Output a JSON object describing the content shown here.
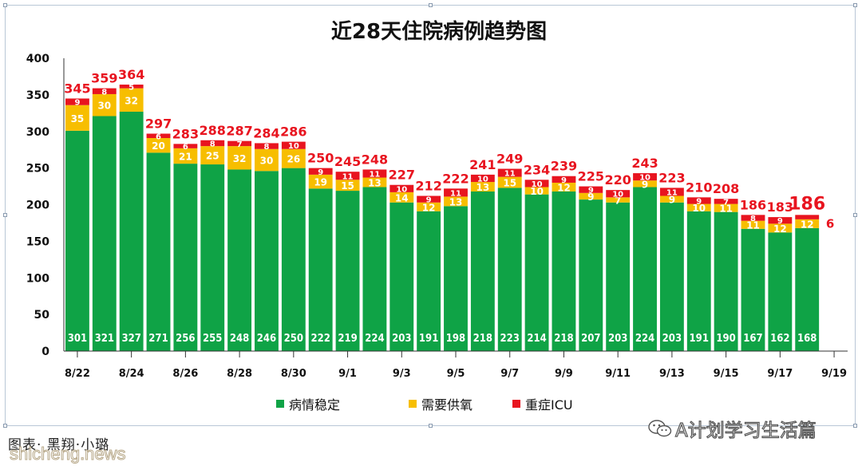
{
  "chart_data": {
    "type": "bar",
    "stacked": true,
    "title": "近28天住院病例趋势图",
    "categories": [
      "8/22",
      "8/23",
      "8/24",
      "8/25",
      "8/26",
      "8/27",
      "8/28",
      "8/29",
      "8/30",
      "8/31",
      "9/1",
      "9/2",
      "9/3",
      "9/4",
      "9/5",
      "9/6",
      "9/7",
      "9/8",
      "9/9",
      "9/10",
      "9/11",
      "9/12",
      "9/13",
      "9/14",
      "9/15",
      "9/16",
      "9/17",
      "9/18",
      "9/19"
    ],
    "x_tick_labels": [
      "8/22",
      "8/24",
      "8/26",
      "8/28",
      "8/30",
      "9/1",
      "9/3",
      "9/5",
      "9/7",
      "9/9",
      "9/11",
      "9/13",
      "9/15",
      "9/17",
      "9/19"
    ],
    "ylim": [
      0,
      400
    ],
    "yticks": [
      0,
      50,
      100,
      150,
      200,
      250,
      300,
      350,
      400
    ],
    "grid": false,
    "legend_position": "bottom",
    "series": [
      {
        "name": "病情稳定",
        "color": "#0fa346",
        "values": [
          301,
          321,
          327,
          271,
          256,
          255,
          248,
          246,
          250,
          222,
          219,
          224,
          203,
          191,
          198,
          218,
          223,
          214,
          218,
          207,
          203,
          224,
          203,
          191,
          190,
          167,
          162,
          168,
          null
        ]
      },
      {
        "name": "需要供氧",
        "color": "#f7be00",
        "values": [
          35,
          30,
          32,
          20,
          21,
          25,
          32,
          30,
          26,
          19,
          15,
          13,
          14,
          12,
          13,
          13,
          15,
          10,
          12,
          9,
          7,
          9,
          9,
          10,
          11,
          11,
          12,
          12,
          null
        ]
      },
      {
        "name": "重症ICU",
        "color": "#e8141f",
        "values": [
          9,
          8,
          5,
          6,
          6,
          8,
          7,
          8,
          10,
          9,
          11,
          11,
          10,
          9,
          11,
          10,
          11,
          10,
          9,
          9,
          10,
          10,
          11,
          9,
          7,
          8,
          9,
          6,
          null
        ]
      }
    ],
    "totals": [
      345,
      359,
      364,
      297,
      283,
      288,
      287,
      284,
      286,
      250,
      245,
      248,
      227,
      212,
      222,
      241,
      249,
      234,
      239,
      225,
      220,
      243,
      223,
      210,
      208,
      186,
      183,
      186,
      null
    ],
    "latest_total_highlighted": true
  },
  "footer": {
    "credit": "图表· 黑翔·小璐",
    "watermark_site": "shicheng.news",
    "watermark_brand": "A计划学习生活篇"
  }
}
